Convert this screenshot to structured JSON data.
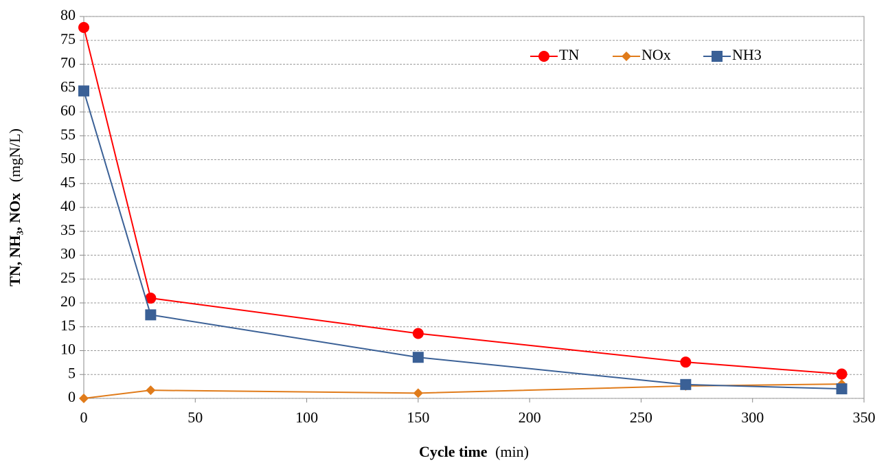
{
  "chart_data": {
    "type": "line",
    "ylabel": "TN, NH₃, NOx",
    "ylabel_unit": "(mgN/L)",
    "xlabel": "Cycle time",
    "xlabel_unit": "(min)",
    "x": [
      0,
      30,
      150,
      270,
      340
    ],
    "series": [
      {
        "name": "TN",
        "color": "#ff0000",
        "marker": "circle",
        "values": [
          77.7,
          21,
          13.6,
          7.6,
          5.1
        ]
      },
      {
        "name": "NOx",
        "color": "#e07b1a",
        "marker": "diamond",
        "values": [
          0,
          1.7,
          1.1,
          2.6,
          3.0
        ]
      },
      {
        "name": "NH3",
        "color": "#3a6096",
        "marker": "square",
        "values": [
          64.4,
          17.5,
          8.6,
          2.9,
          2.0
        ]
      }
    ],
    "xlim": [
      0,
      350
    ],
    "xticks": [
      0,
      50,
      100,
      150,
      200,
      250,
      300,
      350
    ],
    "ylim": [
      0,
      80
    ],
    "yticks": [
      0,
      5,
      10,
      15,
      20,
      25,
      30,
      35,
      40,
      45,
      50,
      55,
      60,
      65,
      70,
      75,
      80
    ],
    "grid": true,
    "legend": "top-right"
  }
}
